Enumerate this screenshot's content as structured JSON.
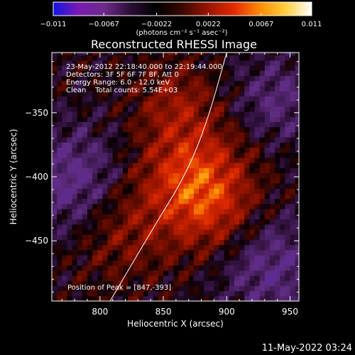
{
  "chart_data": {
    "type": "heatmap",
    "title": "Reconstructed RHESSI Image",
    "xlabel": "Heliocentric X (arcsec)",
    "ylabel": "Heliocentric Y (arcsec)",
    "xlim": [
      762,
      957
    ],
    "ylim": [
      -497,
      -303
    ],
    "x_ticks": [
      800,
      850,
      900,
      950
    ],
    "x_tick_labels": [
      "800",
      "850",
      "900",
      "950"
    ],
    "y_ticks": [
      -350,
      -400,
      -450
    ],
    "y_tick_labels": [
      "−350",
      "−400",
      "−450"
    ],
    "colorbar": {
      "range": [
        -0.011,
        0.011
      ],
      "ticks": [
        -0.011,
        -0.0067,
        -0.0022,
        0.0022,
        0.0067,
        0.011
      ],
      "tick_labels": [
        "−0.011",
        "−0.0067",
        "−0.0022",
        "0.0022",
        "0.0067",
        "0.011"
      ],
      "unit_label": "(photons cm⁻² s⁻¹ asec⁻²)",
      "colors": [
        "#1414e6",
        "#7a1ab0",
        "#6c2a8a",
        "#2a0e34",
        "#000000",
        "#3a0800",
        "#9a1400",
        "#e22a00",
        "#ff8c00",
        "#ffd040",
        "#ffffff"
      ]
    },
    "info_lines": [
      "23-May-2012 22:18:40.000 to 22:19:44.000",
      "Detectors: 3F 5F 6F 7F 8F, Att 0",
      "Energy Range: 6.0 - 12.0 keV",
      "Clean    Total counts: 5.54E+03"
    ],
    "peak_label": "Position of Peak = [847,-393]",
    "peak": [
      847,
      -393
    ],
    "limb_curve": [
      [
        808,
        -497
      ],
      [
        842,
        -440
      ],
      [
        868,
        -398
      ],
      [
        885,
        -356
      ],
      [
        900,
        -303
      ]
    ]
  },
  "footer": {
    "timestamp": "11-May-2022 03:24"
  }
}
